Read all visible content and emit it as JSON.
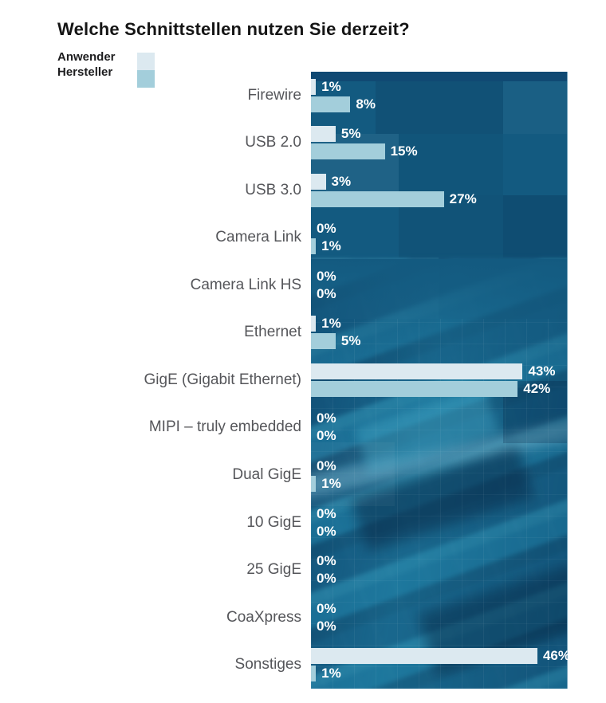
{
  "title": "Welche Schnittstellen nutzen Sie derzeit?",
  "legend": {
    "items": [
      {
        "label": "Anwender",
        "color": "#dce9f0"
      },
      {
        "label": "Hersteller",
        "color": "#a3cedb"
      }
    ]
  },
  "chart_data": {
    "type": "bar",
    "orientation": "horizontal",
    "title": "Welche Schnittstellen nutzen Sie derzeit?",
    "categories": [
      "Firewire",
      "USB 2.0",
      "USB 3.0",
      "Camera Link",
      "Camera Link HS",
      "Ethernet",
      "GigE (Gigabit Ethernet)",
      "MIPI – truly embedded",
      "Dual GigE",
      "10 GigE",
      "25 GigE",
      "CoaXpress",
      "Sonstiges"
    ],
    "series": [
      {
        "name": "Anwender",
        "color": "#dce9f0",
        "values": [
          1,
          5,
          3,
          0,
          0,
          1,
          43,
          0,
          0,
          0,
          0,
          0,
          46
        ]
      },
      {
        "name": "Hersteller",
        "color": "#a3cedb",
        "values": [
          8,
          15,
          27,
          1,
          0,
          5,
          42,
          0,
          1,
          0,
          0,
          0,
          1
        ]
      }
    ],
    "value_suffix": "%",
    "xlim": [
      0,
      52
    ],
    "grid": false,
    "legend_position": "top-left",
    "value_label_color": "#ffffff",
    "category_label_color": "#55565a",
    "plot_background_base": "#135a80"
  }
}
